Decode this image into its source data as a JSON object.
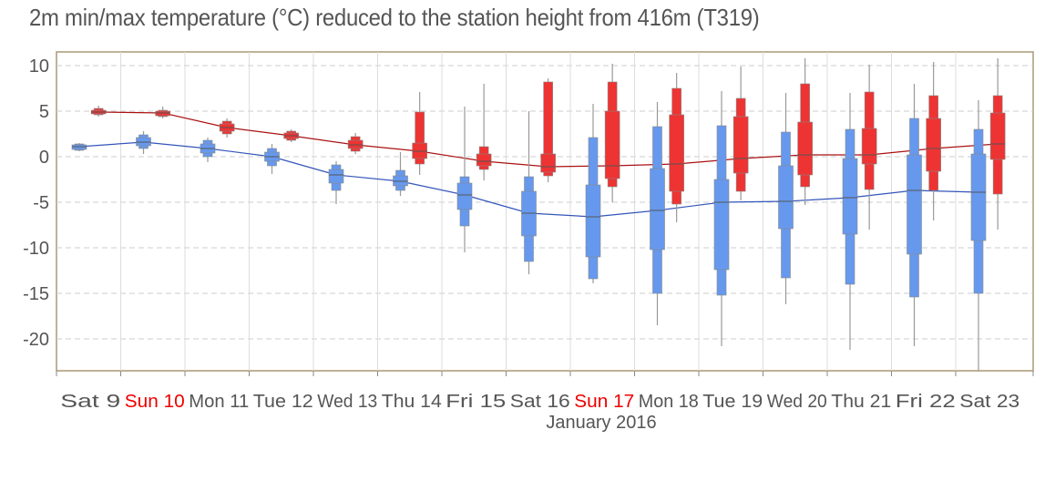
{
  "chart_data": {
    "type": "boxplot",
    "title": "2m min/max temperature (°C) reduced to the station height from 416m (T319)",
    "xlabel": "January 2016",
    "ylim": [
      -23.5,
      11.5
    ],
    "yticks": [
      10,
      5,
      0,
      -5,
      -10,
      -15,
      -20
    ],
    "grid": true,
    "days": [
      {
        "label": "Sat  9",
        "weekend_red": false
      },
      {
        "label": "Sun 10",
        "weekend_red": true
      },
      {
        "label": "Mon 11",
        "weekend_red": false
      },
      {
        "label": "Tue 12",
        "weekend_red": false
      },
      {
        "label": "Wed 13",
        "weekend_red": false
      },
      {
        "label": "Thu 14",
        "weekend_red": false
      },
      {
        "label": "Fri 15",
        "weekend_red": false
      },
      {
        "label": "Sat 16",
        "weekend_red": false
      },
      {
        "label": "Sun 17",
        "weekend_red": true
      },
      {
        "label": "Mon 18",
        "weekend_red": false
      },
      {
        "label": "Tue 19",
        "weekend_red": false
      },
      {
        "label": "Wed 20",
        "weekend_red": false
      },
      {
        "label": "Thu 21",
        "weekend_red": false
      },
      {
        "label": "Fri 22",
        "weekend_red": false
      },
      {
        "label": "Sat 23",
        "weekend_red": false
      }
    ],
    "series": [
      {
        "color": "#6699ee",
        "line_color": "#3355bb",
        "boxes": [
          {
            "day": 0.0,
            "whisker_low": 0.6,
            "q10": 0.7,
            "q25": 0.8,
            "median": 1.1,
            "q75": 1.3,
            "q90": 1.4,
            "whisker_high": 1.5
          },
          {
            "day": 1.0,
            "whisker_low": 0.3,
            "q10": 0.9,
            "q25": 1.2,
            "median": 1.6,
            "q75": 2.1,
            "q90": 2.4,
            "whisker_high": 2.8
          },
          {
            "day": 2.0,
            "whisker_low": -0.6,
            "q10": 0.0,
            "q25": 0.4,
            "median": 0.9,
            "q75": 1.4,
            "q90": 1.8,
            "whisker_high": 2.1
          },
          {
            "day": 3.0,
            "whisker_low": -1.9,
            "q10": -1.0,
            "q25": -0.5,
            "median": 0.0,
            "q75": 0.5,
            "q90": 0.9,
            "whisker_high": 1.4
          },
          {
            "day": 4.0,
            "whisker_low": -5.2,
            "q10": -3.7,
            "q25": -2.9,
            "median": -2.0,
            "q75": -1.4,
            "q90": -0.9,
            "whisker_high": -0.5
          },
          {
            "day": 5.0,
            "whisker_low": -4.3,
            "q10": -3.7,
            "q25": -3.2,
            "median": -2.7,
            "q75": -2.1,
            "q90": -1.5,
            "whisker_high": 0.5
          },
          {
            "day": 6.0,
            "whisker_low": -10.5,
            "q10": -7.6,
            "q25": -5.8,
            "median": -4.2,
            "q75": -2.9,
            "q90": -2.2,
            "whisker_high": 5.5
          },
          {
            "day": 7.0,
            "whisker_low": -12.9,
            "q10": -11.5,
            "q25": -8.7,
            "median": -6.2,
            "q75": -3.8,
            "q90": -2.2,
            "whisker_high": 5.0
          },
          {
            "day": 8.0,
            "whisker_low": -13.9,
            "q10": -13.4,
            "q25": -11.0,
            "median": -6.6,
            "q75": -3.1,
            "q90": 2.1,
            "whisker_high": 5.8
          },
          {
            "day": 9.0,
            "whisker_low": -18.5,
            "q10": -15.0,
            "q25": -10.2,
            "median": -5.9,
            "q75": -1.3,
            "q90": 3.3,
            "whisker_high": 6.0
          },
          {
            "day": 10.0,
            "whisker_low": -20.8,
            "q10": -15.2,
            "q25": -12.4,
            "median": -5.0,
            "q75": -2.5,
            "q90": 3.4,
            "whisker_high": 7.2
          },
          {
            "day": 11.0,
            "whisker_low": -16.2,
            "q10": -13.3,
            "q25": -7.9,
            "median": -4.9,
            "q75": -1.0,
            "q90": 2.7,
            "whisker_high": 7.0
          },
          {
            "day": 12.0,
            "whisker_low": -21.2,
            "q10": -14.0,
            "q25": -8.5,
            "median": -4.5,
            "q75": -0.2,
            "q90": 3.0,
            "whisker_high": 7.0
          },
          {
            "day": 13.0,
            "whisker_low": -20.8,
            "q10": -15.4,
            "q25": -10.7,
            "median": -3.7,
            "q75": 0.2,
            "q90": 4.2,
            "whisker_high": 8.0
          },
          {
            "day": 14.0,
            "whisker_low": -23.5,
            "q10": -15.0,
            "q25": -9.2,
            "median": -3.9,
            "q75": 0.3,
            "q90": 3.0,
            "whisker_high": 6.2
          }
        ],
        "median_line": [
          [
            0.0,
            1.1
          ],
          [
            1.0,
            1.6
          ],
          [
            2.0,
            0.9
          ],
          [
            3.0,
            0.0
          ],
          [
            4.0,
            -2.0
          ],
          [
            5.0,
            -2.7
          ],
          [
            6.0,
            -4.2
          ],
          [
            7.0,
            -6.2
          ],
          [
            8.0,
            -6.6
          ],
          [
            9.0,
            -5.9
          ],
          [
            10.0,
            -5.0
          ],
          [
            11.0,
            -4.9
          ],
          [
            12.0,
            -4.5
          ],
          [
            13.0,
            -3.7
          ],
          [
            14.0,
            -3.9
          ]
        ]
      },
      {
        "color": "#ee3333",
        "line_color": "#aa1111",
        "boxes": [
          {
            "day": 0.3,
            "whisker_low": 4.4,
            "q10": 4.6,
            "q25": 4.7,
            "median": 4.9,
            "q75": 5.1,
            "q90": 5.3,
            "whisker_high": 5.6
          },
          {
            "day": 1.3,
            "whisker_low": 4.2,
            "q10": 4.4,
            "q25": 4.5,
            "median": 4.8,
            "q75": 5.0,
            "q90": 5.1,
            "whisker_high": 5.5
          },
          {
            "day": 2.3,
            "whisker_low": 2.1,
            "q10": 2.5,
            "q25": 2.8,
            "median": 3.2,
            "q75": 3.6,
            "q90": 3.9,
            "whisker_high": 4.2
          },
          {
            "day": 3.3,
            "whisker_low": 1.6,
            "q10": 1.8,
            "q25": 2.0,
            "median": 2.3,
            "q75": 2.6,
            "q90": 2.8,
            "whisker_high": 3.0
          },
          {
            "day": 4.3,
            "whisker_low": 0.3,
            "q10": 0.6,
            "q25": 0.9,
            "median": 1.3,
            "q75": 1.8,
            "q90": 2.2,
            "whisker_high": 2.6
          },
          {
            "day": 5.3,
            "whisker_low": -2.0,
            "q10": -0.8,
            "q25": -0.2,
            "median": 0.6,
            "q75": 1.5,
            "q90": 4.9,
            "whisker_high": 7.1
          },
          {
            "day": 6.3,
            "whisker_low": -2.6,
            "q10": -1.4,
            "q25": -1.0,
            "median": -0.5,
            "q75": 0.3,
            "q90": 1.1,
            "whisker_high": 8.0
          },
          {
            "day": 7.3,
            "whisker_low": -2.8,
            "q10": -2.1,
            "q25": -1.7,
            "median": -1.1,
            "q75": 0.3,
            "q90": 8.2,
            "whisker_high": 8.6
          },
          {
            "day": 8.3,
            "whisker_low": -5.0,
            "q10": -3.3,
            "q25": -2.4,
            "median": -1.0,
            "q75": 5.0,
            "q90": 8.2,
            "whisker_high": 10.2
          },
          {
            "day": 9.3,
            "whisker_low": -7.2,
            "q10": -5.2,
            "q25": -3.8,
            "median": -0.8,
            "q75": 4.6,
            "q90": 7.5,
            "whisker_high": 9.2
          },
          {
            "day": 10.3,
            "whisker_low": -4.8,
            "q10": -3.8,
            "q25": -1.8,
            "median": -0.2,
            "q75": 4.4,
            "q90": 6.4,
            "whisker_high": 9.9
          },
          {
            "day": 11.3,
            "whisker_low": -5.3,
            "q10": -3.3,
            "q25": -2.0,
            "median": 0.2,
            "q75": 3.8,
            "q90": 8.0,
            "whisker_high": 10.8
          },
          {
            "day": 12.3,
            "whisker_low": -8.0,
            "q10": -3.6,
            "q25": -0.8,
            "median": 0.2,
            "q75": 3.1,
            "q90": 7.1,
            "whisker_high": 10.1
          },
          {
            "day": 13.3,
            "whisker_low": -7.0,
            "q10": -3.7,
            "q25": -1.6,
            "median": 0.9,
            "q75": 4.2,
            "q90": 6.7,
            "whisker_high": 10.4
          },
          {
            "day": 14.3,
            "whisker_low": -8.0,
            "q10": -4.1,
            "q25": -0.3,
            "median": 1.4,
            "q75": 4.8,
            "q90": 6.7,
            "whisker_high": 10.8
          }
        ],
        "median_line": [
          [
            0.3,
            4.9
          ],
          [
            1.3,
            4.8
          ],
          [
            2.3,
            3.2
          ],
          [
            3.3,
            2.3
          ],
          [
            4.3,
            1.3
          ],
          [
            5.3,
            0.6
          ],
          [
            6.3,
            -0.5
          ],
          [
            7.3,
            -1.1
          ],
          [
            8.3,
            -1.0
          ],
          [
            9.3,
            -0.8
          ],
          [
            10.3,
            -0.2
          ],
          [
            11.3,
            0.2
          ],
          [
            12.3,
            0.2
          ],
          [
            13.3,
            0.9
          ],
          [
            14.3,
            1.4
          ]
        ]
      }
    ]
  }
}
